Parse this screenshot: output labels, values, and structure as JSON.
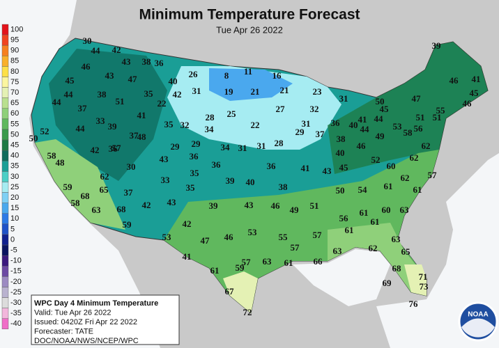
{
  "header": {
    "title": "Minimum Temperature Forecast",
    "subtitle": "Tue Apr 26 2022"
  },
  "legend": {
    "items": [
      {
        "label": 100,
        "color": "#e3141b"
      },
      {
        "label": 95,
        "color": "#f0441f"
      },
      {
        "label": 90,
        "color": "#f6801f"
      },
      {
        "label": 85,
        "color": "#f9b02a"
      },
      {
        "label": 80,
        "color": "#fde047"
      },
      {
        "label": 75,
        "color": "#fbf6a0"
      },
      {
        "label": 70,
        "color": "#e4f1b4"
      },
      {
        "label": 65,
        "color": "#b9e08f"
      },
      {
        "label": 60,
        "color": "#8fd07a"
      },
      {
        "label": 55,
        "color": "#60b85e"
      },
      {
        "label": 50,
        "color": "#3a9a4c"
      },
      {
        "label": 45,
        "color": "#1e7a45"
      },
      {
        "label": 40,
        "color": "#0f6b5c"
      },
      {
        "label": 35,
        "color": "#1a9e96"
      },
      {
        "label": 30,
        "color": "#4ccfc6"
      },
      {
        "label": 25,
        "color": "#a6ecf2"
      },
      {
        "label": 20,
        "color": "#7fd0f5"
      },
      {
        "label": 15,
        "color": "#4aa8ee"
      },
      {
        "label": 10,
        "color": "#2d7ae6"
      },
      {
        "label": 5,
        "color": "#1f52c8"
      },
      {
        "label": 0,
        "color": "#10208e"
      },
      {
        "label": -5,
        "color": "#0a1460"
      },
      {
        "label": -10,
        "color": "#3b1a7e"
      },
      {
        "label": -15,
        "color": "#6c4aa3"
      },
      {
        "label": -20,
        "color": "#9c8bc2"
      },
      {
        "label": -25,
        "color": "#b9b2cf"
      },
      {
        "label": -30,
        "color": "#dcdcdc"
      },
      {
        "label": -35,
        "color": "#f2b6dc"
      },
      {
        "label": -40,
        "color": "#f06ec8"
      }
    ]
  },
  "stations": {
    "values": [
      30,
      44,
      42,
      46,
      43,
      38,
      36,
      43,
      47,
      26,
      8,
      11,
      16,
      45,
      40,
      19,
      21,
      21,
      23,
      39,
      41,
      46,
      45,
      44,
      38,
      35,
      42,
      31,
      31,
      51,
      22,
      44,
      50,
      47,
      46,
      37,
      27,
      32,
      41,
      28,
      25,
      45,
      51,
      51,
      53,
      56,
      55,
      44,
      41,
      44,
      40,
      36,
      31,
      29,
      37,
      22,
      34,
      35,
      32,
      33,
      39,
      44,
      52,
      50,
      57,
      37,
      48,
      29,
      29,
      34,
      31,
      31,
      28,
      38,
      46,
      49,
      58,
      62,
      58,
      42,
      36,
      43,
      36,
      48,
      40,
      52,
      60,
      62,
      57,
      30,
      35,
      36,
      36,
      41,
      43,
      45,
      62,
      33,
      39,
      40,
      62,
      61,
      59,
      65,
      68,
      37,
      35,
      38,
      50,
      54,
      61,
      58,
      63,
      68,
      42,
      43,
      39,
      43,
      46,
      49,
      51,
      61,
      60,
      63,
      56,
      61,
      59,
      42,
      61,
      53,
      47,
      46,
      53,
      55,
      57,
      63,
      57,
      62,
      63,
      65,
      41,
      57,
      59,
      63,
      61,
      66,
      61,
      68,
      71,
      69,
      73,
      67,
      72,
      76
    ]
  },
  "info": {
    "lines": [
      "WPC Day 4 Minimum Temperature",
      "Valid: Tue Apr 26 2022",
      "Issued: 0420Z Fri Apr 22 2022",
      "Forecaster: TATE",
      "DOC/NOAA/NWS/NCEP/WPC"
    ]
  },
  "logo": {
    "text": "NOAA"
  }
}
